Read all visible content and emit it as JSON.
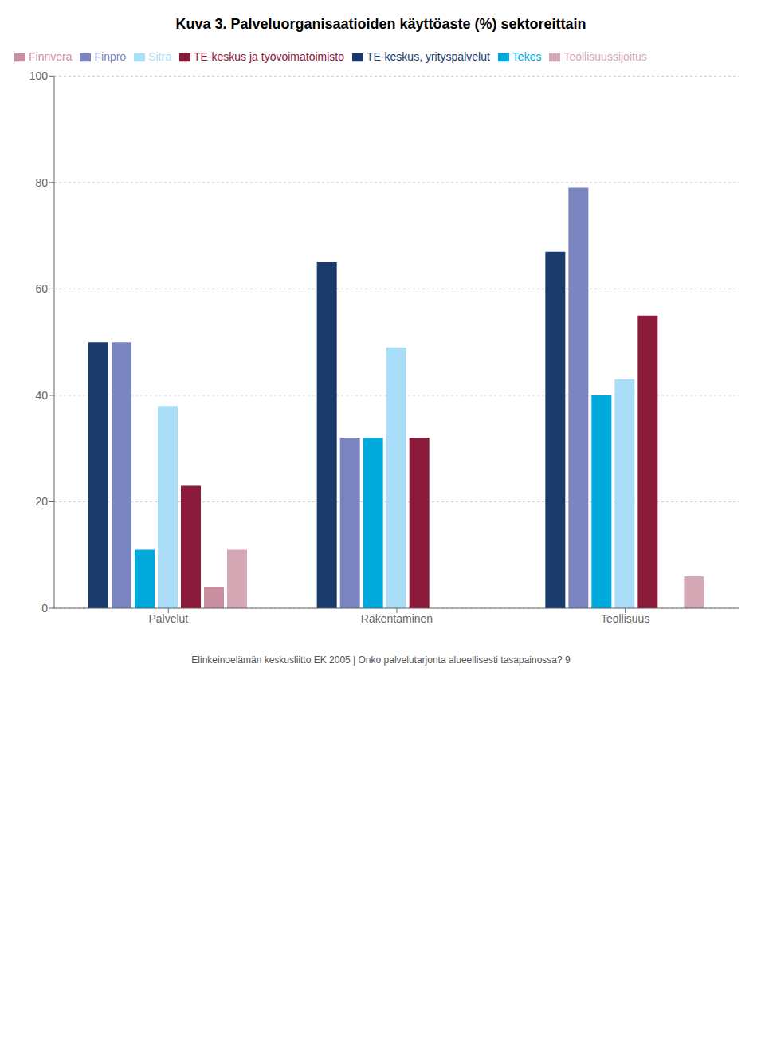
{
  "chart_data": {
    "type": "bar",
    "title": "Kuva 3. Palveluorganisaatioiden käyttöaste (%) sektoreittain",
    "annotations": [
      "Elinkeinoelämän keskusliitto EK 2005  |  Onko palvelutarjonta alueellisesti tasapainossa?   9"
    ],
    "categories": [
      "Palvelut",
      "Rakentaminen",
      "Teollisuus"
    ],
    "series": [
      {
        "name": "TE-keskus, yrityspalvelut",
        "color": "#1a3a6b",
        "values": [
          50,
          65,
          67
        ]
      },
      {
        "name": "Finpro",
        "color": "#7b85c0",
        "values": [
          50,
          32,
          79
        ]
      },
      {
        "name": "Tekes",
        "color": "#00aadd",
        "values": [
          11,
          32,
          40
        ]
      },
      {
        "name": "Sitra",
        "color": "#aaddf7",
        "values": [
          38,
          49,
          43
        ]
      },
      {
        "name": "TE-keskus ja työvoimatoimisto",
        "color": "#8b1a3b",
        "values": [
          23,
          32,
          55
        ]
      },
      {
        "name": "Finnvera",
        "color": "#c98fa0",
        "values": [
          4,
          0,
          0
        ]
      },
      {
        "name": "Teollisuussijoitus",
        "color": "#d4a8b5",
        "values": [
          11,
          0,
          6
        ]
      }
    ],
    "ylim": [
      0,
      100
    ],
    "yticks": [
      0,
      20,
      40,
      60,
      80,
      100
    ],
    "grid": true,
    "legend": "upper left"
  }
}
